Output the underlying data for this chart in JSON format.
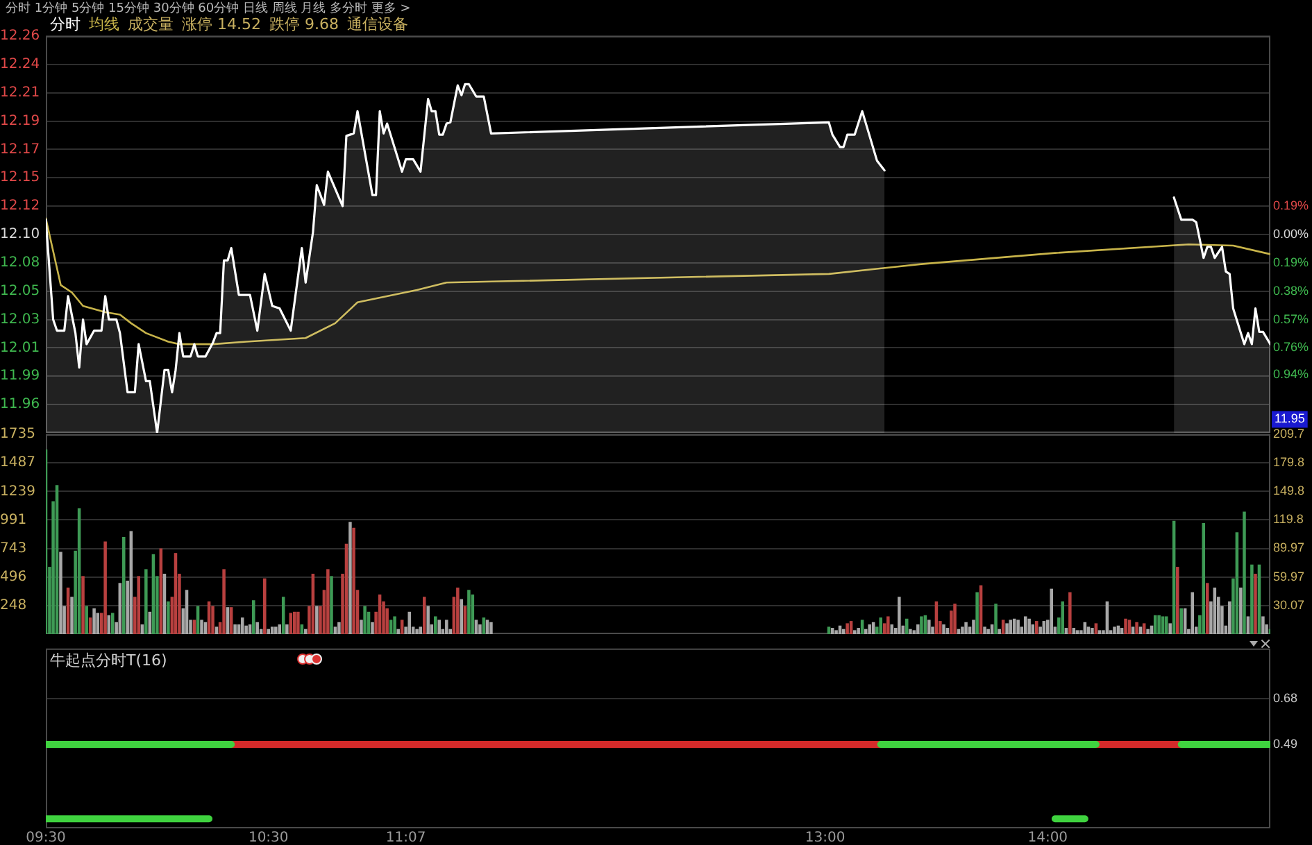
{
  "chart_data": [
    {
      "type": "line",
      "subtitle": "分时 1分钟 5分钟 15分钟 30分钟 60分钟 日线 周线 月线 多分时 更多 >",
      "xlim": [
        9.5,
        15
      ],
      "ylim": [
        11.939,
        12.261
      ],
      "yticks": [
        {
          "value": 12.261,
          "label": "12.26"
        },
        {
          "value": 12.238,
          "label": "12.24"
        },
        {
          "value": 12.215,
          "label": "12.21"
        },
        {
          "value": 12.192,
          "label": "12.19"
        },
        {
          "value": 12.169,
          "label": "12.17"
        },
        {
          "value": 12.146,
          "label": "12.15"
        },
        {
          "value": 12.123,
          "label": "12.12"
        },
        {
          "value": 12.1,
          "label": "12.10"
        },
        {
          "value": 12.077,
          "label": "12.08"
        },
        {
          "value": 12.054,
          "label": "12.05"
        },
        {
          "value": 12.031,
          "label": "12.03"
        },
        {
          "value": 12.008,
          "label": "12.01"
        },
        {
          "value": 11.985,
          "label": "11.99"
        },
        {
          "value": 11.962,
          "label": "11.96"
        }
      ],
      "y2lim": [
        -1.33,
        1.33
      ],
      "y2ticks": [
        {
          "value": 0.19,
          "label": "0.19%"
        },
        {
          "value": 0,
          "label": "0.00%"
        },
        {
          "value": -0.19,
          "label": "0.19%"
        },
        {
          "value": -0.38,
          "label": "0.38%"
        },
        {
          "value": -0.57,
          "label": "0.57%"
        },
        {
          "value": -0.76,
          "label": "0.76%"
        },
        {
          "value": -0.94,
          "label": "0.94%"
        }
      ],
      "tick_labels": "y",
      "grid": "y",
      "legend": "top left",
      "marker": "none",
      "line_style": "solid",
      "series": [
        {
          "name": "分时",
          "type": "area",
          "color": "#ffffff",
          "x": [
            9.5,
            9.533,
            9.55,
            9.583,
            9.6,
            9.633,
            9.65,
            9.667,
            9.683,
            9.717,
            9.75,
            9.767,
            9.783,
            9.817,
            9.833,
            9.867,
            9.9,
            9.917,
            9.95,
            9.967,
            10,
            10.033,
            10.05,
            10.067,
            10.083,
            10.1,
            10.117,
            10.15,
            10.167,
            10.183,
            10.217,
            10.25,
            10.267,
            10.283,
            10.3,
            10.317,
            10.333,
            10.367,
            10.417,
            10.45,
            10.483,
            10.517,
            10.55,
            10.6,
            10.65,
            10.667,
            10.7,
            10.717,
            10.75,
            10.767,
            10.833,
            10.85,
            10.883,
            10.9,
            10.967,
            10.983,
            11,
            11.017,
            11.033,
            11.1,
            11.117,
            11.15,
            11.183,
            11.217,
            11.233,
            11.25,
            11.267,
            11.283,
            11.3,
            11.317,
            11.35,
            11.367,
            11.383,
            11.4,
            11.433,
            11.467,
            11.5,
            13.017,
            13.033,
            13.067,
            13.083,
            13.1,
            13.133,
            13.167,
            13.233,
            13.267,
            13.917,
            14.567,
            14.6,
            14.65,
            14.667,
            14.7,
            14.717,
            14.733,
            14.75,
            14.783,
            14.8,
            14.817,
            14.833,
            14.883,
            14.9,
            14.917,
            14.933,
            14.95,
            14.967,
            15
          ],
          "values": [
            12.112,
            12.031,
            12.022,
            12.022,
            12.05,
            12.02,
            11.992,
            12.031,
            12.011,
            12.022,
            12.022,
            12.05,
            12.031,
            12.031,
            12.02,
            11.972,
            11.972,
            12.011,
            11.981,
            11.981,
            11.939,
            11.99,
            11.99,
            11.972,
            11.99,
            12.02,
            12.001,
            12.001,
            12.011,
            12.001,
            12.001,
            12.012,
            12.02,
            12.02,
            12.079,
            12.079,
            12.089,
            12.051,
            12.051,
            12.022,
            12.068,
            12.042,
            12.04,
            12.022,
            12.089,
            12.061,
            12.102,
            12.14,
            12.124,
            12.151,
            12.123,
            12.18,
            12.182,
            12.2,
            12.132,
            12.132,
            12.2,
            12.182,
            12.19,
            12.151,
            12.161,
            12.161,
            12.151,
            12.21,
            12.2,
            12.2,
            12.181,
            12.181,
            12.19,
            12.191,
            12.221,
            12.213,
            12.222,
            12.222,
            12.212,
            12.212,
            12.182,
            12.191,
            12.181,
            12.171,
            12.171,
            12.181,
            12.181,
            12.2,
            12.16,
            12.152,
            null,
            12.13,
            12.112,
            12.112,
            12.11,
            12.081,
            12.09,
            12.09,
            12.081,
            12.09,
            12.07,
            12.068,
            12.04,
            12.011,
            12.02,
            12.011,
            12.04,
            12.021,
            12.021,
            12.011
          ]
        },
        {
          "name": "均线",
          "color": "#c8b44a",
          "x": [
            9.5,
            9.567,
            9.617,
            9.667,
            9.767,
            9.833,
            9.883,
            9.95,
            10.05,
            10.1,
            10.25,
            10.4,
            10.667,
            10.8,
            10.9,
            11.167,
            11.3,
            13.017,
            13.433,
            14.033,
            14.633,
            14.833,
            15
          ],
          "values": [
            12.113,
            12.059,
            12.053,
            12.042,
            12.037,
            12.035,
            12.028,
            12.02,
            12.013,
            12.011,
            12.011,
            12.013,
            12.016,
            12.028,
            12.045,
            12.055,
            12.061,
            12.068,
            12.076,
            12.085,
            12.092,
            12.091,
            12.084
          ]
        }
      ],
      "annotations": [
        "成交量",
        "涨停 14.52",
        "跌停 9.68",
        "通信设备",
        {
          "text": "11.95",
          "y": 11.95
        }
      ]
    },
    {
      "type": "bar",
      "xlim": [
        9.5,
        15
      ],
      "x": [
        9.5,
        9.517,
        9.533,
        9.55,
        9.567,
        9.583,
        9.6,
        9.617,
        9.633,
        9.65,
        9.667,
        9.683,
        9.7,
        9.717,
        9.733,
        9.75,
        9.767,
        9.783,
        9.8,
        9.817,
        9.833,
        9.85,
        9.867,
        9.883,
        9.9,
        9.917,
        9.933,
        9.95,
        9.967,
        9.983,
        10,
        10.017,
        10.033,
        10.05,
        10.067,
        10.083,
        10.1,
        10.117,
        10.133,
        10.15,
        10.167,
        10.183,
        10.2,
        10.217,
        10.233,
        10.25,
        10.267,
        10.283,
        10.3,
        10.317,
        10.333,
        10.35,
        10.367,
        10.383,
        10.4,
        10.417,
        10.433,
        10.45,
        10.467,
        10.483,
        10.5,
        10.517,
        10.533,
        10.55,
        10.567,
        10.583,
        10.6,
        10.617,
        10.633,
        10.65,
        10.667,
        10.683,
        10.7,
        10.717,
        10.733,
        10.75,
        10.767,
        10.783,
        10.8,
        10.817,
        10.833,
        10.85,
        10.867,
        10.883,
        10.9,
        10.917,
        10.933,
        10.95,
        10.967,
        10.983,
        11,
        11.017,
        11.033,
        11.05,
        11.067,
        11.083,
        11.1,
        11.117,
        11.133,
        11.15,
        11.167,
        11.183,
        11.2,
        11.217,
        11.233,
        11.25,
        11.267,
        11.283,
        11.3,
        11.317,
        11.333,
        11.35,
        11.367,
        11.383,
        11.4,
        11.417,
        11.433,
        11.45,
        11.467,
        11.483,
        11.5,
        13.017,
        13.033,
        13.05,
        13.067,
        13.083,
        13.1,
        13.117,
        13.133,
        13.15,
        13.167,
        13.183,
        13.2,
        13.217,
        13.233,
        13.25,
        13.267,
        13.283,
        13.3,
        13.317,
        13.333,
        13.35,
        13.367,
        13.383,
        13.4,
        13.417,
        13.433,
        13.45,
        13.467,
        13.483,
        13.5,
        13.517,
        13.533,
        13.55,
        13.567,
        13.583,
        13.6,
        13.617,
        13.633,
        13.65,
        13.667,
        13.683,
        13.7,
        13.717,
        13.733,
        13.75,
        13.767,
        13.783,
        13.8,
        13.817,
        13.833,
        13.85,
        13.867,
        13.883,
        13.9,
        13.917,
        13.933,
        13.95,
        13.967,
        13.983,
        14,
        14.017,
        14.033,
        14.05,
        14.067,
        14.083,
        14.1,
        14.117,
        14.133,
        14.15,
        14.167,
        14.183,
        14.2,
        14.217,
        14.233,
        14.25,
        14.267,
        14.283,
        14.3,
        14.317,
        14.333,
        14.35,
        14.367,
        14.383,
        14.4,
        14.417,
        14.433,
        14.45,
        14.467,
        14.483,
        14.5,
        14.517,
        14.533,
        14.55,
        14.567,
        14.583,
        14.6,
        14.617,
        14.633,
        14.65,
        14.667,
        14.683,
        14.7,
        14.717,
        14.733,
        14.75,
        14.767,
        14.783,
        14.8,
        14.817,
        14.833,
        14.85,
        14.867,
        14.883,
        14.9,
        14.917,
        14.933,
        14.95,
        14.967,
        14.983,
        15
      ],
      "ylim": [
        0,
        1735
      ],
      "yticks": [
        248,
        496,
        743,
        991,
        1239,
        1487,
        1735
      ],
      "y2lim": [
        0,
        209.7
      ],
      "y2ticks": [
        30.07,
        59.97,
        89.97,
        119.8,
        149.8,
        179.8,
        209.7
      ],
      "tick_labels": "y",
      "grid": "y",
      "values": [
        1600,
        580,
        1150,
        1290,
        710,
        240,
        400,
        320,
        720,
        1090,
        500,
        240,
        140,
        220,
        180,
        180,
        800,
        160,
        180,
        100,
        440,
        840,
        460,
        890,
        320,
        500,
        80,
        560,
        190,
        690,
        500,
        740,
        520,
        280,
        320,
        700,
        520,
        220,
        380,
        120,
        120,
        240,
        120,
        100,
        280,
        240,
        60,
        100,
        560,
        230,
        230,
        80,
        80,
        140,
        70,
        80,
        290,
        100,
        40,
        480,
        40,
        60,
        60,
        80,
        320,
        80,
        180,
        190,
        190,
        80,
        40,
        240,
        520,
        240,
        240,
        380,
        560,
        500,
        60,
        100,
        520,
        780,
        970,
        920,
        380,
        120,
        240,
        190,
        100,
        190,
        340,
        280,
        220,
        120,
        150,
        40,
        120,
        60,
        190,
        60,
        40,
        60,
        320,
        240,
        80,
        150,
        120,
        40,
        120,
        40,
        320,
        400,
        300,
        240,
        380,
        340,
        120,
        80,
        140,
        120,
        100,
        60,
        50,
        30,
        70,
        40,
        90,
        110,
        30,
        50,
        120,
        40,
        80,
        100,
        60,
        140,
        90,
        150,
        80,
        50,
        320,
        70,
        130,
        40,
        30,
        80,
        150,
        160,
        120,
        60,
        280,
        110,
        80,
        50,
        200,
        260,
        40,
        60,
        100,
        60,
        120,
        360,
        420,
        60,
        40,
        80,
        260,
        40,
        120,
        90,
        120,
        130,
        120,
        60,
        150,
        130,
        80,
        110,
        60,
        110,
        120,
        390,
        60,
        140,
        280,
        50,
        360,
        50,
        30,
        30,
        100,
        60,
        50,
        90,
        30,
        30,
        280,
        30,
        60,
        70,
        50,
        130,
        120,
        60,
        100,
        60,
        90,
        40,
        70,
        160,
        160,
        150,
        150,
        90,
        980,
        580,
        220,
        220,
        40,
        360,
        60,
        160,
        960,
        440,
        280,
        400,
        320,
        240,
        70,
        280,
        480,
        880,
        400,
        1060,
        150,
        600,
        520,
        600,
        150,
        80,
        40
      ],
      "colors": [
        "#3e9a55",
        "#3e9a55",
        "#3e9a55",
        "#3e9a55",
        "#a8a8a8",
        "#a8a8a8",
        "#b8403f",
        "#a8a8a8",
        "#3e9a55",
        "#3e9a55",
        "#b8403f",
        "#3e9a55",
        "#b8403f",
        "#a8a8a8",
        "#a8a8a8",
        "#b8403f",
        "#b8403f",
        "#a8a8a8",
        "#3e9a55",
        "#a8a8a8",
        "#a8a8a8",
        "#3e9a55",
        "#a8a8a8",
        "#a8a8a8",
        "#b8403f",
        "#b8403f",
        "#a8a8a8",
        "#3e9a55",
        "#a8a8a8",
        "#3e9a55",
        "#3e9a55",
        "#b8403f",
        "#a8a8a8",
        "#3e9a55",
        "#b8403f",
        "#b8403f",
        "#b8403f",
        "#a8a8a8",
        "#a8a8a8",
        "#a8a8a8",
        "#b8403f",
        "#3e9a55",
        "#a8a8a8",
        "#a8a8a8",
        "#b8403f",
        "#b8403f",
        "#a8a8a8",
        "#b8403f",
        "#b8403f",
        "#a8a8a8",
        "#b8403f",
        "#a8a8a8",
        "#a8a8a8",
        "#a8a8a8",
        "#a8a8a8",
        "#a8a8a8",
        "#3e9a55",
        "#a8a8a8",
        "#a8a8a8",
        "#b8403f",
        "#a8a8a8",
        "#a8a8a8",
        "#a8a8a8",
        "#a8a8a8",
        "#3e9a55",
        "#a8a8a8",
        "#b8403f",
        "#b8403f",
        "#b8403f",
        "#3e9a55",
        "#a8a8a8",
        "#b8403f",
        "#b8403f",
        "#a8a8a8",
        "#b8403f",
        "#b8403f",
        "#b8403f",
        "#3e9a55",
        "#a8a8a8",
        "#a8a8a8",
        "#b8403f",
        "#b8403f",
        "#a8a8a8",
        "#b8403f",
        "#b8403f",
        "#a8a8a8",
        "#3e9a55",
        "#3e9a55",
        "#a8a8a8",
        "#b8403f",
        "#b8403f",
        "#b8403f",
        "#b8403f",
        "#3e9a55",
        "#3e9a55",
        "#a8a8a8",
        "#b8403f",
        "#a8a8a8",
        "#a8a8a8",
        "#a8a8a8",
        "#a8a8a8",
        "#a8a8a8",
        "#b8403f",
        "#a8a8a8",
        "#a8a8a8",
        "#3e9a55",
        "#a8a8a8",
        "#a8a8a8",
        "#a8a8a8",
        "#a8a8a8",
        "#b8403f",
        "#b8403f",
        "#a8a8a8",
        "#b8403f",
        "#3e9a55",
        "#3e9a55",
        "#a8a8a8",
        "#a8a8a8",
        "#3e9a55",
        "#a8a8a8",
        "#a8a8a8",
        "#3e9a55",
        "#a8a8a8",
        "#a8a8a8",
        "#a8a8a8",
        "#a8a8a8",
        "#b8403f",
        "#b8403f",
        "#a8a8a8",
        "#a8a8a8",
        "#3e9a55",
        "#a8a8a8",
        "#a8a8a8",
        "#a8a8a8",
        "#3e9a55",
        "#3e9a55",
        "#b8403f",
        "#b8403f",
        "#a8a8a8",
        "#a8a8a8",
        "#a8a8a8",
        "#a8a8a8",
        "#3e9a55",
        "#a8a8a8",
        "#a8a8a8",
        "#a8a8a8",
        "#3e9a55",
        "#3e9a55",
        "#a8a8a8",
        "#a8a8a8",
        "#b8403f",
        "#b8403f",
        "#a8a8a8",
        "#a8a8a8",
        "#b8403f",
        "#b8403f",
        "#a8a8a8",
        "#a8a8a8",
        "#a8a8a8",
        "#a8a8a8",
        "#a8a8a8",
        "#3e9a55",
        "#b8403f",
        "#a8a8a8",
        "#a8a8a8",
        "#a8a8a8",
        "#3e9a55",
        "#a8a8a8",
        "#b8403f",
        "#a8a8a8",
        "#a8a8a8",
        "#a8a8a8",
        "#a8a8a8",
        "#a8a8a8",
        "#a8a8a8",
        "#a8a8a8",
        "#a8a8a8",
        "#b8403f",
        "#a8a8a8",
        "#a8a8a8",
        "#a8a8a8",
        "#a8a8a8",
        "#a8a8a8",
        "#3e9a55",
        "#3e9a55",
        "#a8a8a8",
        "#b8403f",
        "#a8a8a8",
        "#a8a8a8",
        "#a8a8a8",
        "#a8a8a8",
        "#a8a8a8",
        "#a8a8a8",
        "#b8403f",
        "#a8a8a8",
        "#a8a8a8",
        "#a8a8a8",
        "#a8a8a8",
        "#a8a8a8",
        "#a8a8a8",
        "#a8a8a8",
        "#b8403f",
        "#b8403f",
        "#a8a8a8",
        "#b8403f",
        "#a8a8a8",
        "#b8403f",
        "#a8a8a8",
        "#a8a8a8",
        "#3e9a55",
        "#3e9a55",
        "#3e9a55",
        "#3e9a55",
        "#a8a8a8",
        "#3e9a55",
        "#b8403f",
        "#3e9a55",
        "#a8a8a8",
        "#a8a8a8",
        "#a8a8a8",
        "#a8a8a8",
        "#3e9a55",
        "#3e9a55",
        "#b8403f",
        "#a8a8a8",
        "#a8a8a8",
        "#a8a8a8",
        "#a8a8a8",
        "#a8a8a8",
        "#a8a8a8",
        "#3e9a55",
        "#3e9a55",
        "#a8a8a8",
        "#3e9a55",
        "#a8a8a8",
        "#3e9a55",
        "#b8403f",
        "#3e9a55",
        "#a8a8a8",
        "#a8a8a8",
        "#3e9a55"
      ]
    },
    {
      "type": "line",
      "title": "牛起点分时T(16)",
      "xlim": [
        9.5,
        15
      ],
      "xticks": [
        {
          "value": 9.5,
          "label": "09:30"
        },
        {
          "value": 10.5,
          "label": "10:30"
        },
        {
          "value": 11.117,
          "label": "11:07"
        },
        {
          "value": 13,
          "label": "13:00"
        },
        {
          "value": 14,
          "label": "14:00"
        }
      ],
      "ylim": [
        0.14,
        0.89
      ],
      "yticks": [
        0.49,
        0.68
      ],
      "grid": "y",
      "marker": "none",
      "line_style": "solid",
      "series": [
        {
          "color": "#3fd23f",
          "x": [
            9.5,
            10.333,
            11.167,
            13.25,
            14.217,
            14.4,
            14.6,
            15
          ],
          "values": [
            0.49,
            0.49,
            null,
            0.49,
            0.49,
            null,
            0.49,
            0.49
          ]
        },
        {
          "color": "#d42a2a",
          "x": [
            10.333,
            13.25,
            13.667,
            14.217,
            14.6
          ],
          "values": [
            0.49,
            0.49,
            null,
            0.49,
            0.49
          ]
        },
        {
          "color": "#3fd23f",
          "x": [
            9.5,
            10.233,
            11.167,
            14.033,
            14.167
          ],
          "values": [
            0.18,
            0.18,
            null,
            0.18,
            0.18
          ]
        }
      ]
    }
  ]
}
